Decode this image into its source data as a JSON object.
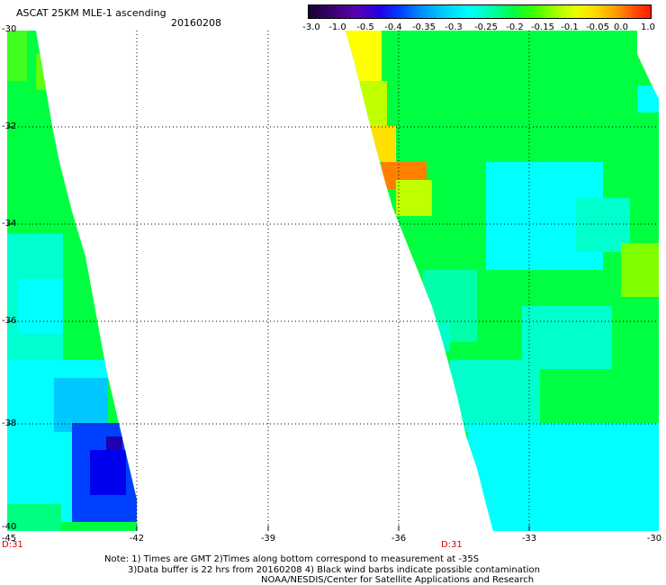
{
  "header": {
    "title": "ASCAT 25KM MLE-1 ascending",
    "date": "20160208"
  },
  "colorbar": {
    "labels": [
      "-3.0",
      "-1.0",
      "-0.5",
      "-0.4",
      "-0.35",
      "-0.3",
      "-0.25",
      "-0.2",
      "-0.15",
      "-0.1",
      "-0.05",
      "0.0",
      "1.0"
    ]
  },
  "map": {
    "lat_labels": [
      "-30",
      "-32",
      "-34",
      "-36",
      "-38",
      "-40"
    ],
    "lon_labels": [
      "-45",
      "-42",
      "-39",
      "-36",
      "-33",
      "-30"
    ],
    "time_labels": [
      "D:31",
      "D:31"
    ]
  },
  "notes": {
    "line1": "Note: 1) Times are GMT 2)Times along bottom correspond to measurement at -35S",
    "line2": "3)Data buffer is 22 hrs from 20160208 4) Black wind barbs indicate possible contamination",
    "line3": "NOAA/NESDIS/Center for Satellite Applications and Research"
  },
  "colors": {
    "cyan": "#00ffff",
    "aqua": "#00ffcc",
    "green": "#00ff40",
    "lime": "#40ff00",
    "yellow": "#ffff00",
    "orange": "#ff8000",
    "blue": "#0000ff",
    "lightblue": "#00c0ff",
    "red_label": "#e00000"
  }
}
